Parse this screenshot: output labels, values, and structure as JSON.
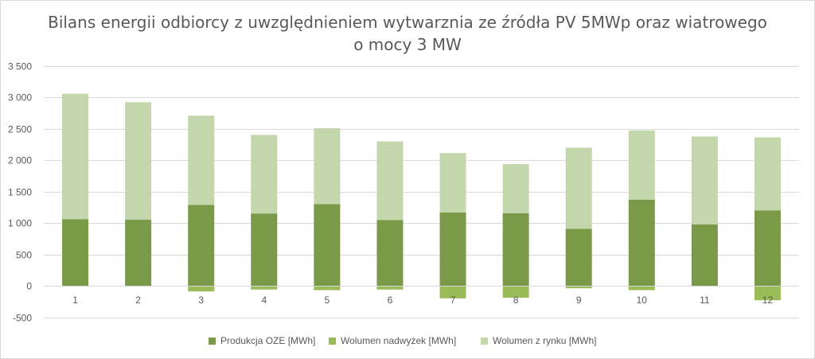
{
  "chart_data": {
    "type": "bar",
    "stacked": true,
    "title": "Bilans energii odbiorcy z uwzględnieniem wytwarznia ze źródła PV 5MWp oraz wiatrowego o mocy 3 MW",
    "xlabel": "",
    "ylabel": "",
    "categories": [
      "1",
      "2",
      "3",
      "4",
      "5",
      "6",
      "7",
      "8",
      "9",
      "10",
      "11",
      "12"
    ],
    "ylim": [
      -500,
      3500
    ],
    "yticks": [
      -500,
      0,
      500,
      1000,
      1500,
      2000,
      2500,
      3000,
      3500
    ],
    "ytick_labels": [
      "-500",
      "0",
      "500",
      "1 000",
      "1 500",
      "2 000",
      "2 500",
      "3 000",
      "3 500"
    ],
    "grid": true,
    "legend_position": "bottom",
    "series": [
      {
        "name": "Produkcja OZE [MWh]",
        "color": "#7a9a4a",
        "values": [
          1060,
          1050,
          1285,
          1150,
          1300,
          1045,
          1165,
          1155,
          905,
          1370,
          975,
          1200
        ]
      },
      {
        "name": "Wolumen nadwyżek [MWh]",
        "color": "#9bbb59",
        "values": [
          0,
          0,
          -90,
          -60,
          -70,
          -60,
          -200,
          -190,
          -40,
          -70,
          0,
          -230
        ]
      },
      {
        "name": "Wolumen z rynku [MWh]",
        "color": "#c4d7ac",
        "values": [
          1995,
          1870,
          1420,
          1250,
          1205,
          1250,
          945,
          780,
          1290,
          1100,
          1400,
          1160
        ]
      }
    ]
  }
}
